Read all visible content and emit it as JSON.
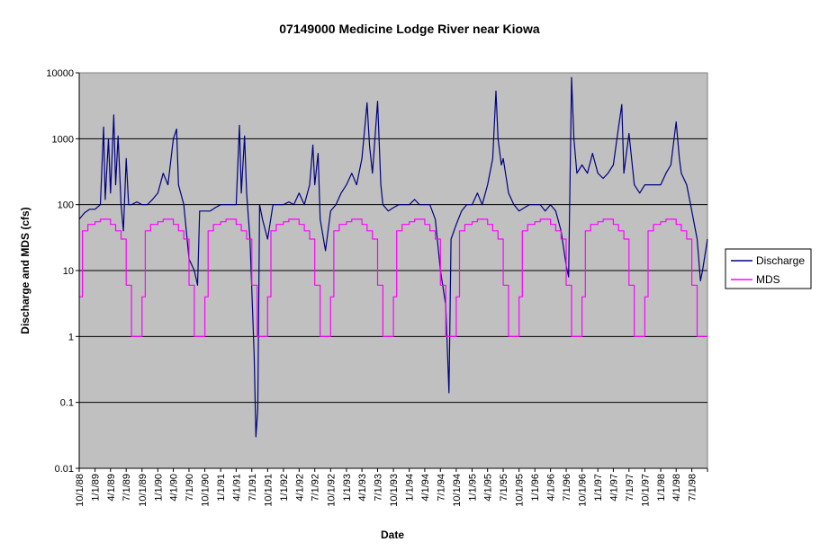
{
  "chart_data": {
    "type": "line",
    "title": "07149000 Medicine Lodge River near Kiowa",
    "xlabel": "Date",
    "ylabel": "Discharge and MDS (cfs)",
    "y_scale": "log",
    "ylim": [
      0.01,
      10000
    ],
    "xlim": [
      "1988-10-01",
      "1998-09-30"
    ],
    "grid": "horizontal major gridlines",
    "plot_background": "#C0C0C0",
    "legend_position": "right",
    "y_ticks": [
      "0.01",
      "0.1",
      "1",
      "10",
      "100",
      "1000",
      "10000"
    ],
    "x_ticks": [
      "10/1/88",
      "1/1/89",
      "4/1/89",
      "7/1/89",
      "10/1/89",
      "1/1/90",
      "4/1/90",
      "7/1/90",
      "10/1/90",
      "1/1/91",
      "4/1/91",
      "7/1/91",
      "10/1/91",
      "1/1/92",
      "4/1/92",
      "7/1/92",
      "10/1/92",
      "1/1/93",
      "4/1/93",
      "7/1/93",
      "10/1/93",
      "1/1/94",
      "4/1/94",
      "7/1/94",
      "10/1/94",
      "1/1/95",
      "4/1/95",
      "7/1/95",
      "10/1/95",
      "1/1/96",
      "4/1/96",
      "7/1/96",
      "10/1/96",
      "1/1/97",
      "4/1/97",
      "7/1/97",
      "10/1/97",
      "1/1/98",
      "4/1/98",
      "7/1/98"
    ],
    "series": [
      {
        "name": "Discharge",
        "color": "#000080",
        "points": [
          [
            "1988-10-01",
            60
          ],
          [
            "1988-11-01",
            75
          ],
          [
            "1988-12-01",
            85
          ],
          [
            "1989-01-01",
            85
          ],
          [
            "1989-02-01",
            100
          ],
          [
            "1989-02-20",
            1500
          ],
          [
            "1989-03-01",
            120
          ],
          [
            "1989-03-20",
            1000
          ],
          [
            "1989-04-01",
            150
          ],
          [
            "1989-04-20",
            2300
          ],
          [
            "1989-05-01",
            200
          ],
          [
            "1989-05-15",
            1100
          ],
          [
            "1989-06-01",
            100
          ],
          [
            "1989-06-15",
            40
          ],
          [
            "1989-07-01",
            500
          ],
          [
            "1989-07-15",
            100
          ],
          [
            "1989-08-01",
            100
          ],
          [
            "1989-09-01",
            110
          ],
          [
            "1989-10-01",
            100
          ],
          [
            "1989-11-01",
            100
          ],
          [
            "1989-12-01",
            120
          ],
          [
            "1990-01-01",
            150
          ],
          [
            "1990-02-01",
            300
          ],
          [
            "1990-03-01",
            200
          ],
          [
            "1990-04-01",
            1000
          ],
          [
            "1990-04-20",
            1400
          ],
          [
            "1990-05-01",
            200
          ],
          [
            "1990-06-01",
            100
          ],
          [
            "1990-07-01",
            15
          ],
          [
            "1990-08-01",
            10
          ],
          [
            "1990-08-20",
            6
          ],
          [
            "1990-09-01",
            80
          ],
          [
            "1990-10-01",
            80
          ],
          [
            "1990-11-01",
            80
          ],
          [
            "1990-12-01",
            90
          ],
          [
            "1991-01-01",
            100
          ],
          [
            "1991-02-01",
            100
          ],
          [
            "1991-03-01",
            100
          ],
          [
            "1991-04-01",
            100
          ],
          [
            "1991-04-20",
            1600
          ],
          [
            "1991-05-01",
            150
          ],
          [
            "1991-05-20",
            1100
          ],
          [
            "1991-06-01",
            150
          ],
          [
            "1991-06-20",
            30
          ],
          [
            "1991-07-01",
            5
          ],
          [
            "1991-07-15",
            0.5
          ],
          [
            "1991-07-25",
            0.03
          ],
          [
            "1991-08-05",
            0.08
          ],
          [
            "1991-08-15",
            100
          ],
          [
            "1991-09-01",
            60
          ],
          [
            "1991-10-01",
            30
          ],
          [
            "1991-11-01",
            100
          ],
          [
            "1991-12-01",
            100
          ],
          [
            "1992-01-01",
            100
          ],
          [
            "1992-02-01",
            110
          ],
          [
            "1992-03-01",
            100
          ],
          [
            "1992-04-01",
            150
          ],
          [
            "1992-05-01",
            100
          ],
          [
            "1992-06-01",
            200
          ],
          [
            "1992-06-20",
            800
          ],
          [
            "1992-07-01",
            200
          ],
          [
            "1992-07-20",
            600
          ],
          [
            "1992-08-01",
            60
          ],
          [
            "1992-09-01",
            20
          ],
          [
            "1992-10-01",
            80
          ],
          [
            "1992-11-01",
            100
          ],
          [
            "1992-12-01",
            150
          ],
          [
            "1993-01-01",
            200
          ],
          [
            "1993-02-01",
            300
          ],
          [
            "1993-03-01",
            200
          ],
          [
            "1993-04-01",
            500
          ],
          [
            "1993-05-01",
            3500
          ],
          [
            "1993-05-15",
            800
          ],
          [
            "1993-06-01",
            300
          ],
          [
            "1993-07-01",
            3700
          ],
          [
            "1993-07-20",
            200
          ],
          [
            "1993-08-01",
            100
          ],
          [
            "1993-09-01",
            80
          ],
          [
            "1993-10-01",
            90
          ],
          [
            "1993-11-01",
            100
          ],
          [
            "1993-12-01",
            100
          ],
          [
            "1994-01-01",
            100
          ],
          [
            "1994-02-01",
            120
          ],
          [
            "1994-03-01",
            100
          ],
          [
            "1994-04-01",
            100
          ],
          [
            "1994-05-01",
            100
          ],
          [
            "1994-06-01",
            60
          ],
          [
            "1994-07-01",
            10
          ],
          [
            "1994-08-01",
            3
          ],
          [
            "1994-08-20",
            0.14
          ],
          [
            "1994-09-01",
            30
          ],
          [
            "1994-10-01",
            50
          ],
          [
            "1994-11-01",
            80
          ],
          [
            "1994-12-01",
            100
          ],
          [
            "1995-01-01",
            100
          ],
          [
            "1995-02-01",
            150
          ],
          [
            "1995-03-01",
            100
          ],
          [
            "1995-04-01",
            200
          ],
          [
            "1995-05-01",
            500
          ],
          [
            "1995-05-20",
            5300
          ],
          [
            "1995-06-01",
            1000
          ],
          [
            "1995-06-20",
            400
          ],
          [
            "1995-07-01",
            500
          ],
          [
            "1995-08-01",
            150
          ],
          [
            "1995-09-01",
            100
          ],
          [
            "1995-10-01",
            80
          ],
          [
            "1995-11-01",
            90
          ],
          [
            "1995-12-01",
            100
          ],
          [
            "1996-01-01",
            100
          ],
          [
            "1996-02-01",
            100
          ],
          [
            "1996-03-01",
            80
          ],
          [
            "1996-04-01",
            100
          ],
          [
            "1996-05-01",
            80
          ],
          [
            "1996-06-01",
            40
          ],
          [
            "1996-07-01",
            12
          ],
          [
            "1996-07-15",
            8
          ],
          [
            "1996-08-01",
            8500
          ],
          [
            "1996-08-15",
            1000
          ],
          [
            "1996-09-01",
            300
          ],
          [
            "1996-10-01",
            400
          ],
          [
            "1996-11-01",
            300
          ],
          [
            "1996-12-01",
            600
          ],
          [
            "1997-01-01",
            300
          ],
          [
            "1997-02-01",
            250
          ],
          [
            "1997-03-01",
            300
          ],
          [
            "1997-04-01",
            400
          ],
          [
            "1997-05-01",
            1500
          ],
          [
            "1997-05-20",
            3300
          ],
          [
            "1997-06-01",
            300
          ],
          [
            "1997-07-01",
            1200
          ],
          [
            "1997-08-01",
            200
          ],
          [
            "1997-09-01",
            150
          ],
          [
            "1997-10-01",
            200
          ],
          [
            "1997-11-01",
            200
          ],
          [
            "1997-12-01",
            200
          ],
          [
            "1998-01-01",
            200
          ],
          [
            "1998-02-01",
            300
          ],
          [
            "1998-03-01",
            400
          ],
          [
            "1998-04-01",
            1800
          ],
          [
            "1998-04-20",
            500
          ],
          [
            "1998-05-01",
            300
          ],
          [
            "1998-06-01",
            200
          ],
          [
            "1998-07-01",
            80
          ],
          [
            "1998-08-01",
            30
          ],
          [
            "1998-08-20",
            7
          ],
          [
            "1998-09-01",
            10
          ],
          [
            "1998-09-30",
            30
          ]
        ]
      },
      {
        "name": "MDS",
        "color": "#FF00FF",
        "points": [
          [
            "1988-10-01",
            4
          ],
          [
            "1988-10-20",
            40
          ],
          [
            "1988-11-20",
            50
          ],
          [
            "1989-01-01",
            55
          ],
          [
            "1989-02-01",
            60
          ],
          [
            "1989-04-01",
            50
          ],
          [
            "1989-05-01",
            40
          ],
          [
            "1989-06-01",
            30
          ],
          [
            "1989-07-01",
            6
          ],
          [
            "1989-08-01",
            1
          ],
          [
            "1989-10-01",
            4
          ],
          [
            "1989-10-20",
            40
          ],
          [
            "1989-11-20",
            50
          ],
          [
            "1990-01-01",
            55
          ],
          [
            "1990-02-01",
            60
          ],
          [
            "1990-04-01",
            50
          ],
          [
            "1990-05-01",
            40
          ],
          [
            "1990-06-01",
            30
          ],
          [
            "1990-07-01",
            6
          ],
          [
            "1990-08-01",
            1
          ],
          [
            "1990-10-01",
            4
          ],
          [
            "1990-10-20",
            40
          ],
          [
            "1990-11-20",
            50
          ],
          [
            "1991-01-01",
            55
          ],
          [
            "1991-02-01",
            60
          ],
          [
            "1991-04-01",
            50
          ],
          [
            "1991-05-01",
            40
          ],
          [
            "1991-06-01",
            30
          ],
          [
            "1991-07-01",
            6
          ],
          [
            "1991-08-01",
            1
          ],
          [
            "1991-10-01",
            4
          ],
          [
            "1991-10-20",
            40
          ],
          [
            "1991-11-20",
            50
          ],
          [
            "1992-01-01",
            55
          ],
          [
            "1992-02-01",
            60
          ],
          [
            "1992-04-01",
            50
          ],
          [
            "1992-05-01",
            40
          ],
          [
            "1992-06-01",
            30
          ],
          [
            "1992-07-01",
            6
          ],
          [
            "1992-08-01",
            1
          ],
          [
            "1992-10-01",
            4
          ],
          [
            "1992-10-20",
            40
          ],
          [
            "1992-11-20",
            50
          ],
          [
            "1993-01-01",
            55
          ],
          [
            "1993-02-01",
            60
          ],
          [
            "1993-04-01",
            50
          ],
          [
            "1993-05-01",
            40
          ],
          [
            "1993-06-01",
            30
          ],
          [
            "1993-07-01",
            6
          ],
          [
            "1993-08-01",
            1
          ],
          [
            "1993-10-01",
            4
          ],
          [
            "1993-10-20",
            40
          ],
          [
            "1993-11-20",
            50
          ],
          [
            "1994-01-01",
            55
          ],
          [
            "1994-02-01",
            60
          ],
          [
            "1994-04-01",
            50
          ],
          [
            "1994-05-01",
            40
          ],
          [
            "1994-06-01",
            30
          ],
          [
            "1994-07-01",
            6
          ],
          [
            "1994-08-01",
            1
          ],
          [
            "1994-10-01",
            4
          ],
          [
            "1994-10-20",
            40
          ],
          [
            "1994-11-20",
            50
          ],
          [
            "1995-01-01",
            55
          ],
          [
            "1995-02-01",
            60
          ],
          [
            "1995-04-01",
            50
          ],
          [
            "1995-05-01",
            40
          ],
          [
            "1995-06-01",
            30
          ],
          [
            "1995-07-01",
            6
          ],
          [
            "1995-08-01",
            1
          ],
          [
            "1995-10-01",
            4
          ],
          [
            "1995-10-20",
            40
          ],
          [
            "1995-11-20",
            50
          ],
          [
            "1996-01-01",
            55
          ],
          [
            "1996-02-01",
            60
          ],
          [
            "1996-04-01",
            50
          ],
          [
            "1996-05-01",
            40
          ],
          [
            "1996-06-01",
            30
          ],
          [
            "1996-07-01",
            6
          ],
          [
            "1996-08-01",
            1
          ],
          [
            "1996-10-01",
            4
          ],
          [
            "1996-10-20",
            40
          ],
          [
            "1996-11-20",
            50
          ],
          [
            "1997-01-01",
            55
          ],
          [
            "1997-02-01",
            60
          ],
          [
            "1997-04-01",
            50
          ],
          [
            "1997-05-01",
            40
          ],
          [
            "1997-06-01",
            30
          ],
          [
            "1997-07-01",
            6
          ],
          [
            "1997-08-01",
            1
          ],
          [
            "1997-10-01",
            4
          ],
          [
            "1997-10-20",
            40
          ],
          [
            "1997-11-20",
            50
          ],
          [
            "1998-01-01",
            55
          ],
          [
            "1998-02-01",
            60
          ],
          [
            "1998-04-01",
            50
          ],
          [
            "1998-05-01",
            40
          ],
          [
            "1998-06-01",
            30
          ],
          [
            "1998-07-01",
            6
          ],
          [
            "1998-08-01",
            1
          ],
          [
            "1998-09-30",
            1
          ]
        ]
      }
    ]
  }
}
